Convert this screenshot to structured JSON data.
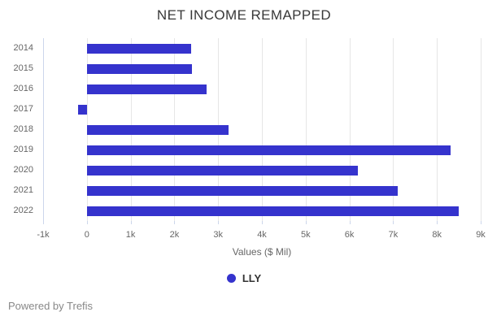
{
  "chart_data": {
    "type": "bar",
    "orientation": "horizontal",
    "title": "NET INCOME REMAPPED",
    "xlabel": "Values ($ Mil)",
    "categories": [
      "2014",
      "2015",
      "2016",
      "2017",
      "2018",
      "2019",
      "2020",
      "2021",
      "2022"
    ],
    "series": [
      {
        "name": "LLY",
        "color": "#3533cd",
        "values": [
          2390,
          2410,
          2740,
          -200,
          3230,
          8320,
          6190,
          7100,
          8500
        ]
      }
    ],
    "value_axis": {
      "min": -1000,
      "max": 9000,
      "tick_values": [
        -1000,
        0,
        1000,
        2000,
        3000,
        4000,
        5000,
        6000,
        7000,
        8000,
        9000
      ],
      "tick_labels": [
        "-1k",
        "0",
        "1k",
        "2k",
        "3k",
        "4k",
        "5k",
        "6k",
        "7k",
        "8k",
        "9k"
      ]
    },
    "grid": true,
    "legend_position": "bottom"
  },
  "colors": {
    "bar": "#3533cd",
    "gridline": "#e6e6e6",
    "axis_line": "#ccd6eb",
    "title_text": "#383838",
    "axis_text": "#666666",
    "legend_text": "#333333",
    "footer_text": "#888888",
    "background": "#ffffff"
  },
  "footer": {
    "text": "Powered by Trefis"
  }
}
